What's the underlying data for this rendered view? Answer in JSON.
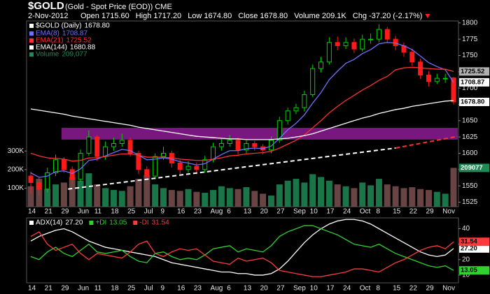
{
  "header": {
    "symbol": "$GOLD",
    "description": "(Gold - Spot Price (EOD)) CME",
    "date": "2-Nov-2012",
    "stats": [
      "Open 1715.60",
      "High 1717.20",
      "Low 1674.80",
      "Close 1678.80",
      "Volume 209.1K",
      "Chg -37.20 (-2.17%)"
    ]
  },
  "chart_data": [
    {
      "type": "candlestick",
      "legend_label": "$GOLD (Daily)",
      "last_label": "1678.80",
      "up_color": "#00d000",
      "down_color": "#ff1a1a",
      "categories": [
        "14",
        null,
        "21",
        null,
        "29",
        null,
        "Jun",
        null,
        "11",
        null,
        "18",
        null,
        "25",
        null,
        "Jul",
        null,
        "9",
        null,
        "16",
        null,
        "23",
        null,
        "Aug",
        null,
        "6",
        null,
        "13",
        null,
        "20",
        null,
        "27",
        null,
        "Sep",
        null,
        "10",
        null,
        "17",
        null,
        "24",
        null,
        "Oct",
        null,
        "8",
        null,
        "15",
        null,
        "22",
        null,
        "29",
        null,
        "Nov",
        null
      ],
      "open": [
        1565,
        1555,
        1545,
        1570,
        1590,
        1575,
        1560,
        1600,
        1625,
        1595,
        1610,
        1615,
        1620,
        1600,
        1575,
        1565,
        1595,
        1600,
        1585,
        1575,
        1580,
        1575,
        1590,
        1610,
        1615,
        1620,
        1605,
        1615,
        1610,
        1605,
        1620,
        1650,
        1665,
        1670,
        1690,
        1730,
        1740,
        1770,
        1765,
        1770,
        1760,
        1775,
        1775,
        1790,
        1775,
        1765,
        1755,
        1740,
        1720,
        1710,
        1715,
        1715.6
      ],
      "high": [
        1572,
        1562,
        1578,
        1598,
        1594,
        1580,
        1606,
        1635,
        1628,
        1618,
        1624,
        1630,
        1624,
        1604,
        1580,
        1600,
        1610,
        1604,
        1590,
        1588,
        1586,
        1596,
        1616,
        1622,
        1628,
        1624,
        1620,
        1619,
        1614,
        1626,
        1656,
        1670,
        1676,
        1696,
        1736,
        1748,
        1778,
        1779,
        1778,
        1776,
        1782,
        1784,
        1798,
        1794,
        1780,
        1770,
        1760,
        1745,
        1726,
        1722,
        1722,
        1717.2
      ],
      "low": [
        1538,
        1535,
        1540,
        1565,
        1570,
        1552,
        1556,
        1596,
        1588,
        1590,
        1604,
        1610,
        1595,
        1568,
        1558,
        1560,
        1590,
        1578,
        1568,
        1570,
        1568,
        1570,
        1586,
        1604,
        1610,
        1598,
        1600,
        1604,
        1598,
        1600,
        1616,
        1644,
        1660,
        1664,
        1686,
        1724,
        1736,
        1758,
        1760,
        1754,
        1756,
        1768,
        1770,
        1770,
        1758,
        1748,
        1734,
        1714,
        1702,
        1706,
        1708,
        1674.8
      ],
      "close": [
        1555,
        1545,
        1570,
        1590,
        1575,
        1560,
        1600,
        1625,
        1595,
        1610,
        1615,
        1620,
        1600,
        1575,
        1565,
        1595,
        1600,
        1585,
        1575,
        1580,
        1575,
        1590,
        1610,
        1615,
        1620,
        1605,
        1615,
        1610,
        1605,
        1620,
        1650,
        1665,
        1670,
        1690,
        1730,
        1740,
        1770,
        1765,
        1770,
        1760,
        1775,
        1775,
        1790,
        1775,
        1765,
        1755,
        1740,
        1720,
        1710,
        1715,
        1715,
        1678.8
      ],
      "ylim": [
        1518,
        1803
      ],
      "yticks": [
        1525,
        1550,
        1575,
        1600,
        1625,
        1650,
        1675,
        1700,
        1725,
        1750,
        1775,
        1800
      ],
      "y2lim": [
        0,
        1000000
      ],
      "y2ticks": [
        {
          "value": 100000,
          "label": "100K"
        },
        {
          "value": 200000,
          "label": "200K"
        },
        {
          "value": 300000,
          "label": "300K"
        }
      ],
      "band": {
        "color": "#a020a8",
        "x": [
          3.7,
          51.5
        ],
        "values": [
          1621,
          1639
        ]
      },
      "trendlines": [
        {
          "color": "#ffffff",
          "x": [
            4.5,
            44
          ],
          "values": [
            1545,
            1608
          ]
        },
        {
          "color": "#ff3030",
          "x": [
            44,
            51.5
          ],
          "values": [
            1608,
            1626
          ]
        }
      ],
      "series": [
        {
          "name": "EMA(8)",
          "color": "#7070ff",
          "values": [
            1570,
            1563,
            1565,
            1572,
            1573,
            1569,
            1576,
            1589,
            1591,
            1596,
            1601,
            1606,
            1604,
            1597,
            1590,
            1591,
            1593,
            1591,
            1587,
            1585,
            1582,
            1584,
            1591,
            1598,
            1604,
            1604,
            1607,
            1608,
            1607,
            1611,
            1623,
            1636,
            1646,
            1659,
            1677,
            1693,
            1713,
            1726,
            1738,
            1744,
            1753,
            1759,
            1768,
            1770,
            1769,
            1765,
            1759,
            1749,
            1739,
            1733,
            1728,
            1708.87
          ]
        },
        {
          "name": "EMA(21)",
          "color": "#ff3030",
          "values": [
            1600,
            1596,
            1593,
            1592,
            1591,
            1588,
            1589,
            1593,
            1593,
            1595,
            1597,
            1599,
            1599,
            1597,
            1594,
            1594,
            1594,
            1593,
            1591,
            1590,
            1589,
            1589,
            1591,
            1593,
            1596,
            1597,
            1599,
            1600,
            1601,
            1603,
            1608,
            1614,
            1620,
            1628,
            1639,
            1650,
            1662,
            1672,
            1681,
            1689,
            1697,
            1704,
            1712,
            1718,
            1728,
            1731,
            1732,
            1731,
            1730,
            1729,
            1729,
            1725.52
          ]
        },
        {
          "name": "EMA(144)",
          "color": "#ffffff",
          "values": [
            1668,
            1666,
            1664,
            1662,
            1660,
            1657,
            1655,
            1653,
            1651,
            1649,
            1647,
            1645,
            1643,
            1640,
            1638,
            1636,
            1634,
            1632,
            1630,
            1628,
            1626,
            1625,
            1624,
            1623,
            1622,
            1622,
            1621,
            1621,
            1621,
            1621,
            1622,
            1623,
            1625,
            1627,
            1630,
            1634,
            1638,
            1642,
            1646,
            1650,
            1654,
            1657,
            1661,
            1664,
            1667,
            1669,
            1672,
            1674,
            1676,
            1678,
            1680,
            1680.88
          ]
        },
        {
          "name": "Volume",
          "axis": "y2",
          "color": "#1f8a55",
          "last_label": "209,077",
          "values": [
            110000,
            150000,
            95000,
            120000,
            130000,
            160000,
            140000,
            180000,
            120000,
            100000,
            90000,
            85000,
            110000,
            150000,
            170000,
            120000,
            100000,
            90000,
            85000,
            95000,
            80000,
            75000,
            90000,
            110000,
            100000,
            95000,
            105000,
            85000,
            70000,
            60000,
            120000,
            140000,
            150000,
            130000,
            175000,
            160000,
            140000,
            120000,
            110000,
            100000,
            130000,
            115000,
            150000,
            120000,
            110000,
            100000,
            105000,
            95000,
            90000,
            80000,
            70000,
            209077
          ]
        }
      ]
    },
    {
      "type": "line",
      "categories": [
        "14",
        null,
        "21",
        null,
        "29",
        null,
        "Jun",
        null,
        "11",
        null,
        "18",
        null,
        "25",
        null,
        "Jul",
        null,
        "9",
        null,
        "16",
        null,
        "23",
        null,
        "Aug",
        null,
        "6",
        null,
        "13",
        null,
        "20",
        null,
        "27",
        null,
        "Sep",
        null,
        "10",
        null,
        "17",
        null,
        "24",
        null,
        "Oct",
        null,
        "8",
        null,
        "15",
        null,
        "22",
        null,
        "29",
        null,
        "Nov",
        null
      ],
      "ylim": [
        5,
        47
      ],
      "yticks": [
        10,
        20,
        30,
        40
      ],
      "series": [
        {
          "name": "ADX(14)",
          "color": "#ffffff",
          "last_label": "27.20",
          "values": [
            32,
            35,
            37,
            39,
            40,
            38,
            35,
            32,
            30,
            28,
            27,
            26,
            25,
            24,
            23,
            22,
            20,
            18,
            17,
            16,
            15,
            14,
            13,
            12,
            12,
            11,
            11,
            10,
            10,
            11,
            14,
            19,
            25,
            31,
            36,
            40,
            43,
            45,
            46,
            46,
            45,
            43,
            40,
            37,
            34,
            31,
            28,
            25,
            23,
            22,
            23,
            27.2
          ]
        },
        {
          "name": "+DI",
          "color": "#30d030",
          "values": [
            22,
            20,
            25,
            28,
            24,
            22,
            26,
            30,
            25,
            24,
            25,
            26,
            22,
            19,
            18,
            24,
            25,
            22,
            20,
            21,
            20,
            23,
            27,
            28,
            29,
            25,
            27,
            26,
            25,
            29,
            35,
            38,
            40,
            42,
            42,
            40,
            38,
            36,
            33,
            30,
            29,
            28,
            30,
            27,
            24,
            22,
            20,
            18,
            16,
            15,
            16,
            13.05
          ]
        },
        {
          "name": "-DI",
          "color": "#ff3a3a",
          "values": [
            35,
            38,
            30,
            26,
            28,
            30,
            24,
            20,
            24,
            23,
            22,
            21,
            25,
            30,
            32,
            24,
            22,
            25,
            27,
            26,
            27,
            23,
            19,
            18,
            17,
            21,
            19,
            20,
            21,
            18,
            13,
            12,
            11,
            10,
            9,
            9,
            10,
            11,
            12,
            14,
            14,
            13,
            12,
            15,
            18,
            20,
            23,
            26,
            28,
            29,
            27,
            31.54
          ]
        }
      ]
    }
  ]
}
